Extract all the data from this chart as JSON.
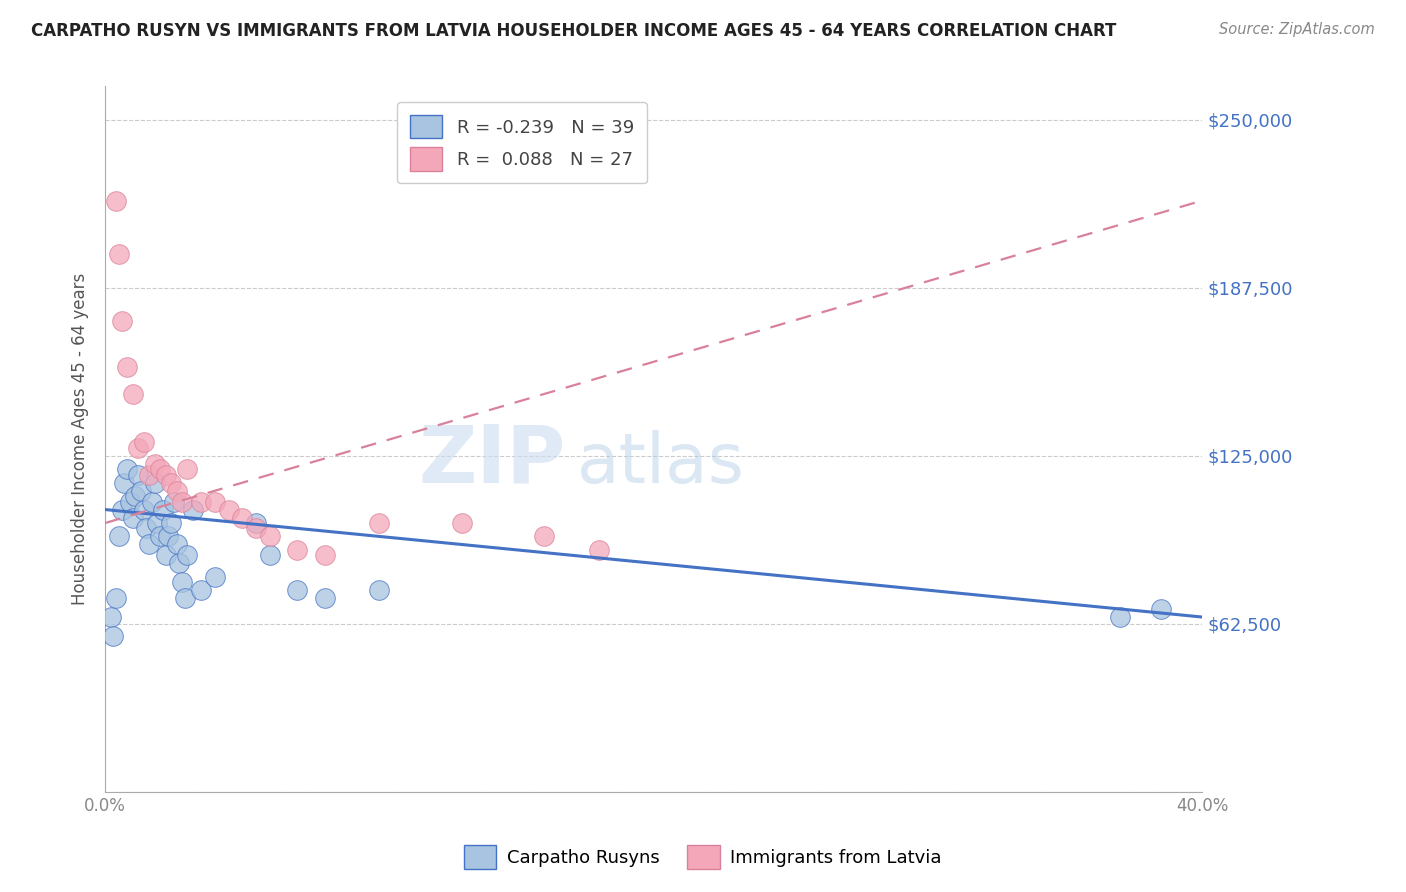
{
  "title": "CARPATHO RUSYN VS IMMIGRANTS FROM LATVIA HOUSEHOLDER INCOME AGES 45 - 64 YEARS CORRELATION CHART",
  "source": "Source: ZipAtlas.com",
  "ylabel": "Householder Income Ages 45 - 64 years",
  "xlim": [
    0.0,
    0.4
  ],
  "ylim": [
    0,
    262500
  ],
  "yticks": [
    0,
    62500,
    125000,
    187500,
    250000
  ],
  "ytick_labels": [
    "",
    "$62,500",
    "$125,000",
    "$187,500",
    "$250,000"
  ],
  "xticks": [
    0.0,
    0.05,
    0.1,
    0.15,
    0.2,
    0.25,
    0.3,
    0.35,
    0.4
  ],
  "xtick_labels": [
    "0.0%",
    "",
    "",
    "",
    "",
    "",
    "",
    "",
    "40.0%"
  ],
  "legend1_r": "R = ",
  "legend1_rval": "-0.239",
  "legend1_n": "   N = ",
  "legend1_nval": "39",
  "legend2_r": "R =  ",
  "legend2_rval": "0.088",
  "legend2_n": "   N = ",
  "legend2_nval": "27",
  "carpatho_color": "#a8c4e0",
  "latvia_color": "#f4a7b9",
  "trend_blue": "#4472c4",
  "trend_pink": "#d9819a",
  "watermark_zip": "ZIP",
  "watermark_atlas": "atlas",
  "blue_scatter_x": [
    0.002,
    0.003,
    0.004,
    0.005,
    0.006,
    0.007,
    0.008,
    0.009,
    0.01,
    0.011,
    0.012,
    0.013,
    0.014,
    0.015,
    0.016,
    0.017,
    0.018,
    0.019,
    0.02,
    0.021,
    0.022,
    0.023,
    0.024,
    0.025,
    0.026,
    0.027,
    0.028,
    0.029,
    0.03,
    0.032,
    0.035,
    0.04,
    0.055,
    0.06,
    0.07,
    0.08,
    0.1,
    0.37,
    0.385
  ],
  "blue_scatter_y": [
    65000,
    58000,
    72000,
    95000,
    105000,
    115000,
    120000,
    108000,
    102000,
    110000,
    118000,
    112000,
    105000,
    98000,
    92000,
    108000,
    115000,
    100000,
    95000,
    105000,
    88000,
    95000,
    100000,
    108000,
    92000,
    85000,
    78000,
    72000,
    88000,
    105000,
    75000,
    80000,
    100000,
    88000,
    75000,
    72000,
    75000,
    65000,
    68000
  ],
  "pink_scatter_x": [
    0.004,
    0.005,
    0.006,
    0.008,
    0.01,
    0.012,
    0.014,
    0.016,
    0.018,
    0.02,
    0.022,
    0.024,
    0.026,
    0.028,
    0.03,
    0.035,
    0.04,
    0.045,
    0.05,
    0.055,
    0.06,
    0.07,
    0.08,
    0.1,
    0.13,
    0.16,
    0.18
  ],
  "pink_scatter_y": [
    220000,
    200000,
    175000,
    158000,
    148000,
    128000,
    130000,
    118000,
    122000,
    120000,
    118000,
    115000,
    112000,
    108000,
    120000,
    108000,
    108000,
    105000,
    102000,
    98000,
    95000,
    90000,
    88000,
    100000,
    100000,
    95000,
    90000
  ],
  "blue_line_x0": 0.0,
  "blue_line_y0": 105000,
  "blue_line_x1": 0.4,
  "blue_line_y1": 65000,
  "pink_line_x0": 0.0,
  "pink_line_y0": 100000,
  "pink_line_x1": 0.4,
  "pink_line_y1": 220000
}
